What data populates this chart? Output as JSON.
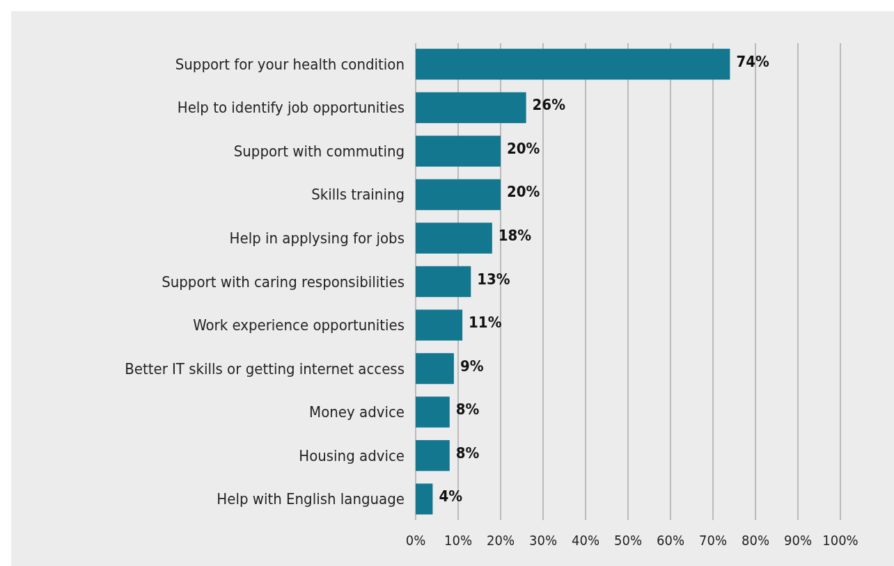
{
  "chart_data": {
    "type": "bar",
    "orientation": "horizontal",
    "categories": [
      "Support for your health condition",
      "Help to identify job opportunities",
      "Support with commuting",
      "Skills training",
      "Help in applysing for jobs",
      "Support with caring responsibilities",
      "Work experience opportunities",
      "Better IT skills or getting internet access",
      "Money advice",
      "Housing advice",
      "Help with English language"
    ],
    "values": [
      74,
      26,
      20,
      20,
      18,
      13,
      11,
      9,
      8,
      8,
      4
    ],
    "value_labels": [
      "74%",
      "26%",
      "20%",
      "20%",
      "18%",
      "13%",
      "11%",
      "9%",
      "8%",
      "8%",
      "4%"
    ],
    "color": "#13778f",
    "xlim": [
      0,
      100
    ],
    "xticks": [
      {
        "value": 0,
        "label": "0%"
      },
      {
        "value": 10,
        "label": "10%"
      },
      {
        "value": 20,
        "label": "20%"
      },
      {
        "value": 30,
        "label": "30%"
      },
      {
        "value": 40,
        "label": "40%"
      },
      {
        "value": 50,
        "label": "50%"
      },
      {
        "value": 60,
        "label": "60%"
      },
      {
        "value": 70,
        "label": "70%"
      },
      {
        "value": 80,
        "label": "80%"
      },
      {
        "value": 90,
        "label": "90%"
      },
      {
        "value": 100,
        "label": "100%"
      }
    ],
    "grid": "x"
  }
}
